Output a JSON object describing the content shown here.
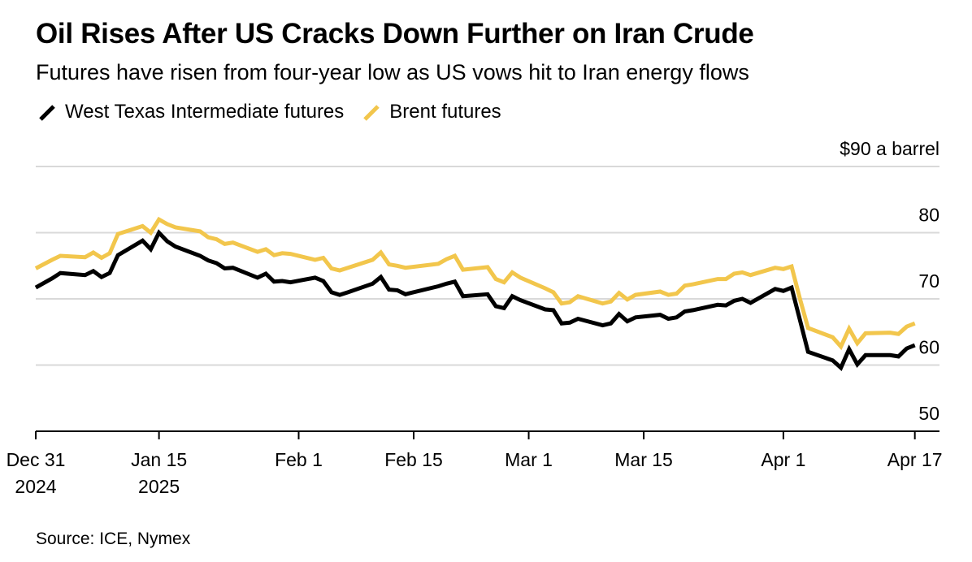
{
  "title": "Oil Rises After US Cracks Down Further on Iran Crude",
  "subtitle": "Futures have risen from four-year low as US vows hit to Iran energy flows",
  "source": "Source: ICE, Nymex",
  "colors": {
    "wti": "#000000",
    "brent": "#f2c64c",
    "grid": "#d9d9d9",
    "axis": "#000000"
  },
  "chart_data": {
    "type": "line",
    "x_type": "date",
    "xlim": [
      "2024-12-31",
      "2025-04-20"
    ],
    "ylim": [
      50,
      90
    ],
    "y_ticks": [
      50,
      60,
      70,
      80,
      90
    ],
    "y_tick_labels": [
      "50",
      "60",
      "70",
      "80",
      "$90 a barrel"
    ],
    "x_ticks": [
      {
        "date": "2024-12-31",
        "label": [
          "Dec 31",
          "2024"
        ]
      },
      {
        "date": "2025-01-15",
        "label": [
          "Jan 15",
          "2025"
        ]
      },
      {
        "date": "2025-02-01",
        "label": [
          "Feb 1"
        ]
      },
      {
        "date": "2025-02-15",
        "label": [
          "Feb 15"
        ]
      },
      {
        "date": "2025-03-01",
        "label": [
          "Mar 1"
        ]
      },
      {
        "date": "2025-03-15",
        "label": [
          "Mar 15"
        ]
      },
      {
        "date": "2025-04-01",
        "label": [
          "Apr 1"
        ]
      },
      {
        "date": "2025-04-17",
        "label": [
          "Apr 17"
        ]
      }
    ],
    "grid": true,
    "legend_position": "top-left",
    "series": [
      {
        "name": "West Texas Intermediate futures",
        "color": "#000000",
        "points": [
          [
            "2024-12-31",
            71.7
          ],
          [
            "2025-01-02",
            73.1
          ],
          [
            "2025-01-03",
            73.9
          ],
          [
            "2025-01-06",
            73.6
          ],
          [
            "2025-01-07",
            74.2
          ],
          [
            "2025-01-08",
            73.3
          ],
          [
            "2025-01-09",
            73.9
          ],
          [
            "2025-01-10",
            76.6
          ],
          [
            "2025-01-13",
            78.8
          ],
          [
            "2025-01-14",
            77.5
          ],
          [
            "2025-01-15",
            80.0
          ],
          [
            "2025-01-16",
            78.7
          ],
          [
            "2025-01-17",
            77.9
          ],
          [
            "2025-01-20",
            76.5
          ],
          [
            "2025-01-21",
            75.8
          ],
          [
            "2025-01-22",
            75.4
          ],
          [
            "2025-01-23",
            74.6
          ],
          [
            "2025-01-24",
            74.7
          ],
          [
            "2025-01-27",
            73.2
          ],
          [
            "2025-01-28",
            73.8
          ],
          [
            "2025-01-29",
            72.6
          ],
          [
            "2025-01-30",
            72.7
          ],
          [
            "2025-01-31",
            72.5
          ],
          [
            "2025-02-03",
            73.2
          ],
          [
            "2025-02-04",
            72.7
          ],
          [
            "2025-02-05",
            71.0
          ],
          [
            "2025-02-06",
            70.6
          ],
          [
            "2025-02-07",
            71.0
          ],
          [
            "2025-02-10",
            72.3
          ],
          [
            "2025-02-11",
            73.3
          ],
          [
            "2025-02-12",
            71.4
          ],
          [
            "2025-02-13",
            71.3
          ],
          [
            "2025-02-14",
            70.7
          ],
          [
            "2025-02-18",
            71.9
          ],
          [
            "2025-02-19",
            72.3
          ],
          [
            "2025-02-20",
            72.6
          ],
          [
            "2025-02-21",
            70.4
          ],
          [
            "2025-02-24",
            70.7
          ],
          [
            "2025-02-25",
            68.9
          ],
          [
            "2025-02-26",
            68.6
          ],
          [
            "2025-02-27",
            70.4
          ],
          [
            "2025-02-28",
            69.8
          ],
          [
            "2025-03-03",
            68.4
          ],
          [
            "2025-03-04",
            68.3
          ],
          [
            "2025-03-05",
            66.3
          ],
          [
            "2025-03-06",
            66.4
          ],
          [
            "2025-03-07",
            67.0
          ],
          [
            "2025-03-10",
            66.0
          ],
          [
            "2025-03-11",
            66.3
          ],
          [
            "2025-03-12",
            67.7
          ],
          [
            "2025-03-13",
            66.6
          ],
          [
            "2025-03-14",
            67.2
          ],
          [
            "2025-03-17",
            67.6
          ],
          [
            "2025-03-18",
            67.0
          ],
          [
            "2025-03-19",
            67.2
          ],
          [
            "2025-03-20",
            68.1
          ],
          [
            "2025-03-21",
            68.3
          ],
          [
            "2025-03-24",
            69.1
          ],
          [
            "2025-03-25",
            69.0
          ],
          [
            "2025-03-26",
            69.7
          ],
          [
            "2025-03-27",
            70.0
          ],
          [
            "2025-03-28",
            69.4
          ],
          [
            "2025-03-31",
            71.5
          ],
          [
            "2025-04-01",
            71.2
          ],
          [
            "2025-04-02",
            71.7
          ],
          [
            "2025-04-03",
            66.9
          ],
          [
            "2025-04-04",
            62.0
          ],
          [
            "2025-04-07",
            60.7
          ],
          [
            "2025-04-08",
            59.6
          ],
          [
            "2025-04-09",
            62.4
          ],
          [
            "2025-04-10",
            60.1
          ],
          [
            "2025-04-11",
            61.5
          ],
          [
            "2025-04-14",
            61.5
          ],
          [
            "2025-04-15",
            61.3
          ],
          [
            "2025-04-16",
            62.5
          ],
          [
            "2025-04-17",
            63.0
          ]
        ]
      },
      {
        "name": "Brent futures",
        "color": "#f2c64c",
        "points": [
          [
            "2024-12-31",
            74.6
          ],
          [
            "2025-01-02",
            75.9
          ],
          [
            "2025-01-03",
            76.5
          ],
          [
            "2025-01-06",
            76.3
          ],
          [
            "2025-01-07",
            77.0
          ],
          [
            "2025-01-08",
            76.2
          ],
          [
            "2025-01-09",
            76.9
          ],
          [
            "2025-01-10",
            79.8
          ],
          [
            "2025-01-13",
            81.0
          ],
          [
            "2025-01-14",
            80.0
          ],
          [
            "2025-01-15",
            82.0
          ],
          [
            "2025-01-16",
            81.3
          ],
          [
            "2025-01-17",
            80.8
          ],
          [
            "2025-01-20",
            80.2
          ],
          [
            "2025-01-21",
            79.3
          ],
          [
            "2025-01-22",
            79.0
          ],
          [
            "2025-01-23",
            78.3
          ],
          [
            "2025-01-24",
            78.5
          ],
          [
            "2025-01-27",
            77.1
          ],
          [
            "2025-01-28",
            77.5
          ],
          [
            "2025-01-29",
            76.6
          ],
          [
            "2025-01-30",
            76.9
          ],
          [
            "2025-01-31",
            76.8
          ],
          [
            "2025-02-03",
            75.9
          ],
          [
            "2025-02-04",
            76.2
          ],
          [
            "2025-02-05",
            74.6
          ],
          [
            "2025-02-06",
            74.3
          ],
          [
            "2025-02-07",
            74.7
          ],
          [
            "2025-02-10",
            75.9
          ],
          [
            "2025-02-11",
            77.0
          ],
          [
            "2025-02-12",
            75.2
          ],
          [
            "2025-02-13",
            75.0
          ],
          [
            "2025-02-14",
            74.7
          ],
          [
            "2025-02-18",
            75.3
          ],
          [
            "2025-02-19",
            76.0
          ],
          [
            "2025-02-20",
            76.5
          ],
          [
            "2025-02-21",
            74.4
          ],
          [
            "2025-02-24",
            74.8
          ],
          [
            "2025-02-25",
            73.0
          ],
          [
            "2025-02-26",
            72.5
          ],
          [
            "2025-02-27",
            74.0
          ],
          [
            "2025-02-28",
            73.2
          ],
          [
            "2025-03-03",
            71.6
          ],
          [
            "2025-03-04",
            71.0
          ],
          [
            "2025-03-05",
            69.3
          ],
          [
            "2025-03-06",
            69.5
          ],
          [
            "2025-03-07",
            70.4
          ],
          [
            "2025-03-10",
            69.3
          ],
          [
            "2025-03-11",
            69.6
          ],
          [
            "2025-03-12",
            70.9
          ],
          [
            "2025-03-13",
            69.9
          ],
          [
            "2025-03-14",
            70.6
          ],
          [
            "2025-03-17",
            71.1
          ],
          [
            "2025-03-18",
            70.6
          ],
          [
            "2025-03-19",
            70.8
          ],
          [
            "2025-03-20",
            72.0
          ],
          [
            "2025-03-21",
            72.2
          ],
          [
            "2025-03-24",
            73.0
          ],
          [
            "2025-03-25",
            73.0
          ],
          [
            "2025-03-26",
            73.8
          ],
          [
            "2025-03-27",
            74.0
          ],
          [
            "2025-03-28",
            73.6
          ],
          [
            "2025-03-31",
            74.7
          ],
          [
            "2025-04-01",
            74.5
          ],
          [
            "2025-04-02",
            74.9
          ],
          [
            "2025-04-03",
            70.1
          ],
          [
            "2025-04-04",
            65.6
          ],
          [
            "2025-04-07",
            64.2
          ],
          [
            "2025-04-08",
            62.8
          ],
          [
            "2025-04-09",
            65.5
          ],
          [
            "2025-04-10",
            63.3
          ],
          [
            "2025-04-11",
            64.8
          ],
          [
            "2025-04-14",
            64.9
          ],
          [
            "2025-04-15",
            64.7
          ],
          [
            "2025-04-16",
            65.8
          ],
          [
            "2025-04-17",
            66.3
          ]
        ]
      }
    ]
  }
}
